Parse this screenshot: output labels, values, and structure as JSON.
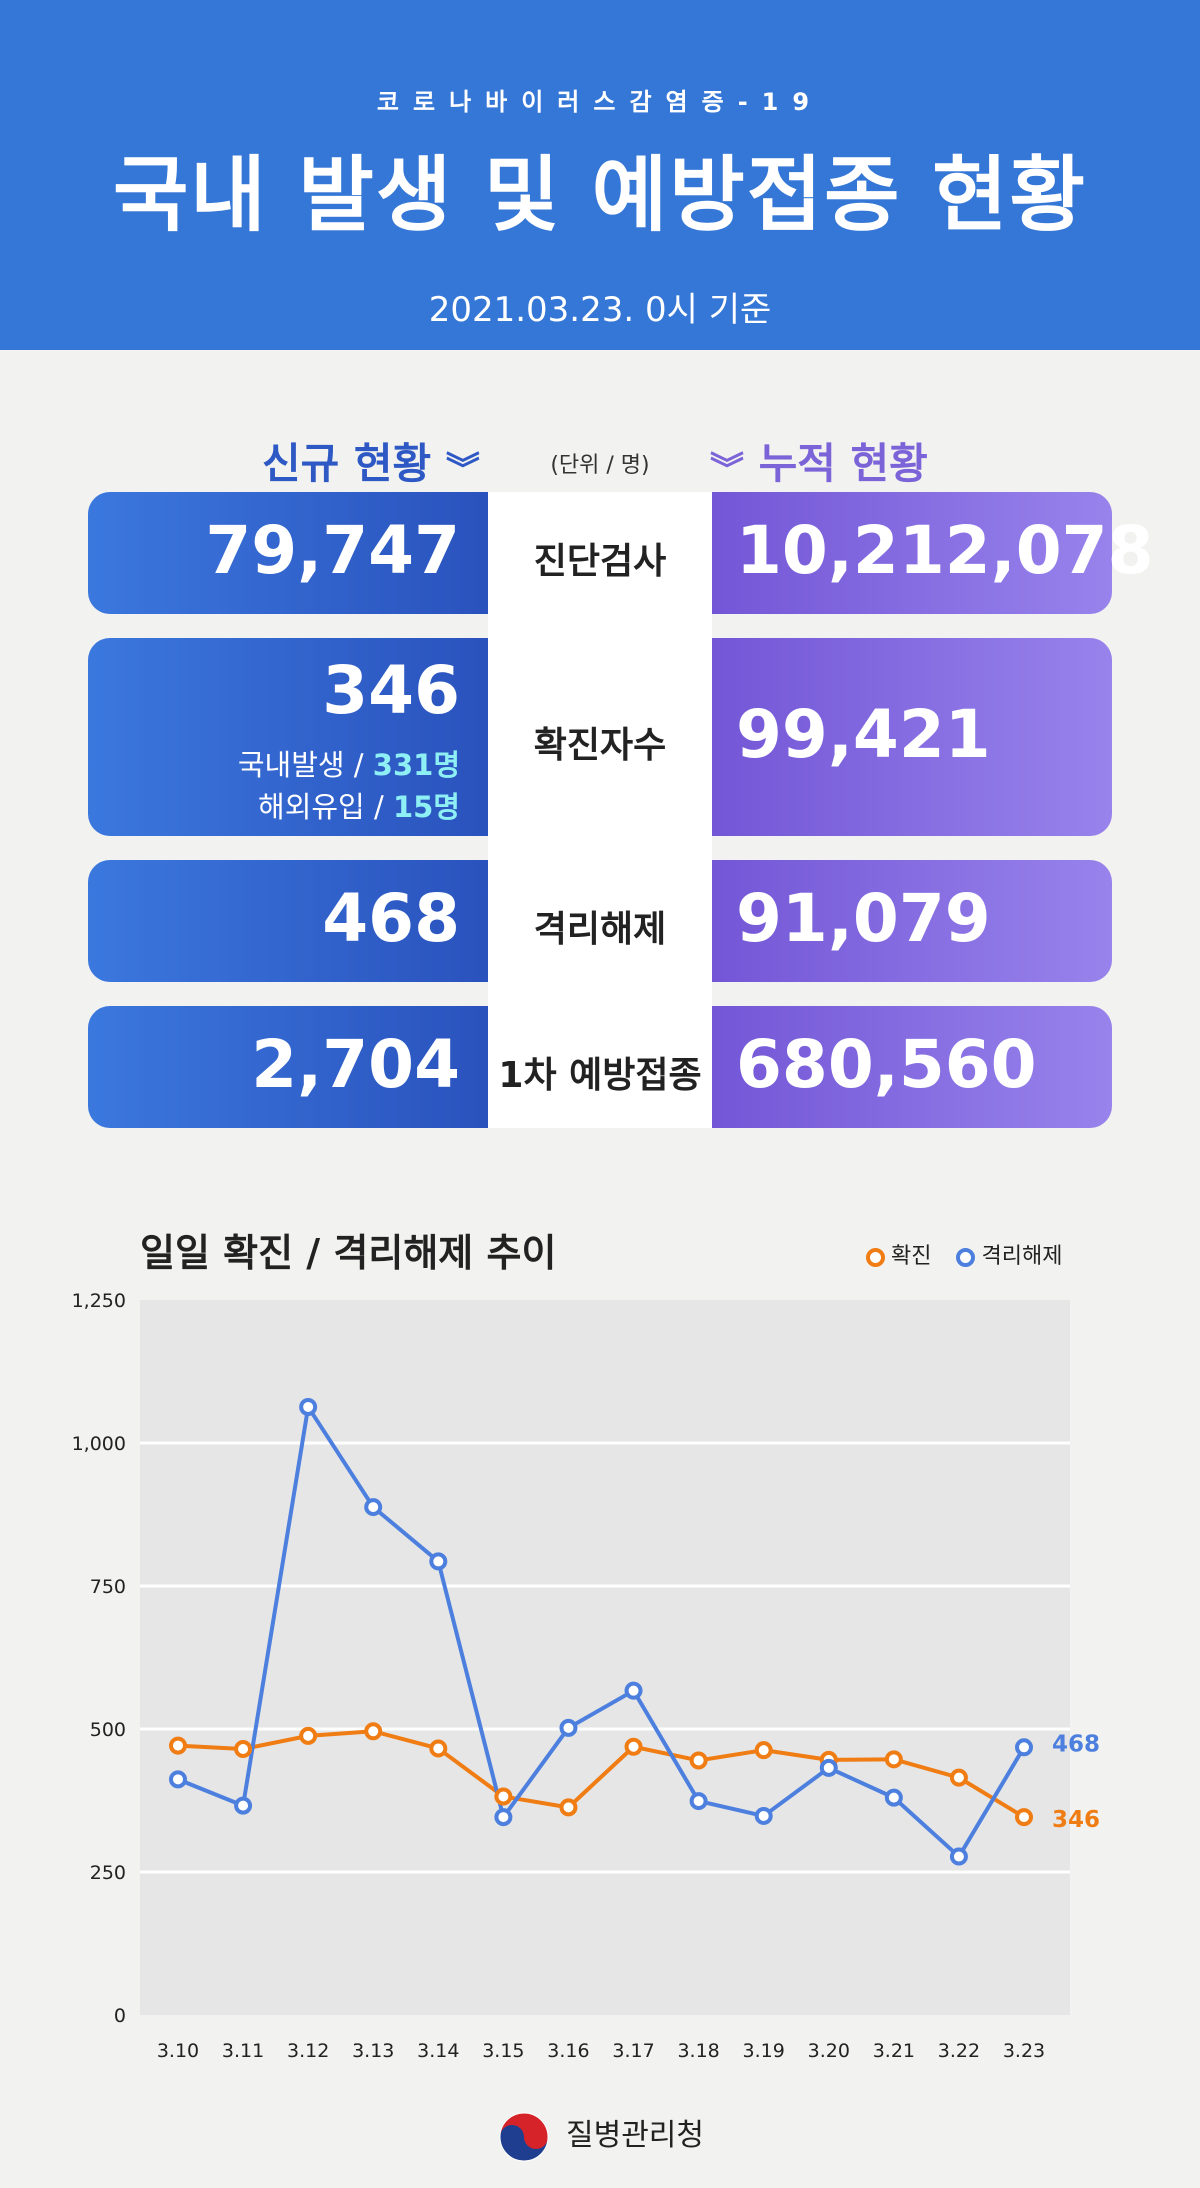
{
  "header": {
    "subtitle": "코로나바이러스감염증-19",
    "title": "국내 발생 및 예방접종 현황",
    "date": "2021.03.23. 0시 기준",
    "bg_color": "#3577d6"
  },
  "summary": {
    "new_label": "신규 현황",
    "cum_label": "누적 현황",
    "unit": "(단위 / 명)",
    "rows": [
      {
        "label": "진단검사",
        "new": "79,747",
        "cum": "10,212,078"
      },
      {
        "label": "확진자수",
        "new": "346",
        "cum": "99,421",
        "breakdown": [
          {
            "label": "국내발생 /",
            "value": "331명"
          },
          {
            "label": "해외유입 /",
            "value": "15명"
          }
        ]
      },
      {
        "label": "격리해제",
        "new": "468",
        "cum": "91,079"
      },
      {
        "label": "1차 예방접종",
        "new": "2,704",
        "cum": "680,560"
      }
    ]
  },
  "chart_data": {
    "type": "line",
    "title": "일일 확진 / 격리해제 추이",
    "categories": [
      "3.10",
      "3.11",
      "3.12",
      "3.13",
      "3.14",
      "3.15",
      "3.16",
      "3.17",
      "3.18",
      "3.19",
      "3.20",
      "3.21",
      "3.22",
      "3.23"
    ],
    "series": [
      {
        "name": "확진",
        "color": "#f07c14",
        "values": [
          471,
          465,
          488,
          496,
          466,
          382,
          363,
          469,
          445,
          463,
          446,
          447,
          415,
          346
        ]
      },
      {
        "name": "격리해제",
        "color": "#4c7fde",
        "values": [
          412,
          366,
          1063,
          888,
          793,
          346,
          502,
          567,
          374,
          348,
          432,
          380,
          277,
          468
        ]
      }
    ],
    "ylim": [
      0,
      1250
    ],
    "yticks": [
      0,
      250,
      500,
      750,
      1000,
      1250
    ],
    "ytick_labels": [
      "0",
      "250",
      "500",
      "750",
      "1,000",
      "1,250"
    ],
    "end_labels": [
      "346",
      "468"
    ]
  },
  "footer": {
    "agency": "질병관리청"
  }
}
